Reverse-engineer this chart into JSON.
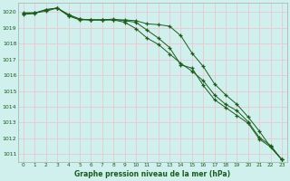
{
  "title": "Graphe pression niveau de la mer (hPa)",
  "bg_color": "#d0f0ee",
  "grid_color": "#e8c8d0",
  "line_color": "#1a5c1a",
  "marker_color": "#1a5c1a",
  "xlim": [
    -0.5,
    23.5
  ],
  "ylim": [
    1010.5,
    1020.6
  ],
  "yticks": [
    1011,
    1012,
    1013,
    1014,
    1015,
    1016,
    1017,
    1018,
    1019,
    1020
  ],
  "xticks": [
    0,
    1,
    2,
    3,
    4,
    5,
    6,
    7,
    8,
    9,
    10,
    11,
    12,
    13,
    14,
    15,
    16,
    17,
    18,
    19,
    20,
    21,
    22,
    23
  ],
  "series1": [
    1019.95,
    1019.95,
    1020.05,
    1020.25,
    1019.85,
    1019.55,
    1019.5,
    1019.5,
    1019.5,
    1019.5,
    1019.45,
    1019.25,
    1019.2,
    1019.1,
    1018.5,
    1017.4,
    1016.55,
    1015.45,
    1014.75,
    1014.15,
    1013.35,
    1012.45,
    1011.45,
    1010.65
  ],
  "series2": [
    1019.85,
    1019.9,
    1020.15,
    1020.25,
    1019.75,
    1019.5,
    1019.5,
    1019.5,
    1019.5,
    1019.35,
    1018.95,
    1018.35,
    1017.95,
    1017.35,
    1016.75,
    1016.25,
    1015.65,
    1014.75,
    1014.15,
    1013.75,
    1013.05,
    1012.05,
    1011.55,
    1010.65
  ],
  "series3": [
    1019.9,
    1019.95,
    1020.15,
    1020.25,
    1019.8,
    1019.55,
    1019.5,
    1019.5,
    1019.55,
    1019.45,
    1019.35,
    1018.85,
    1018.35,
    1017.75,
    1016.65,
    1016.45,
    1015.35,
    1014.45,
    1013.95,
    1013.45,
    1012.95,
    1011.95,
    1011.45,
    1010.65
  ]
}
